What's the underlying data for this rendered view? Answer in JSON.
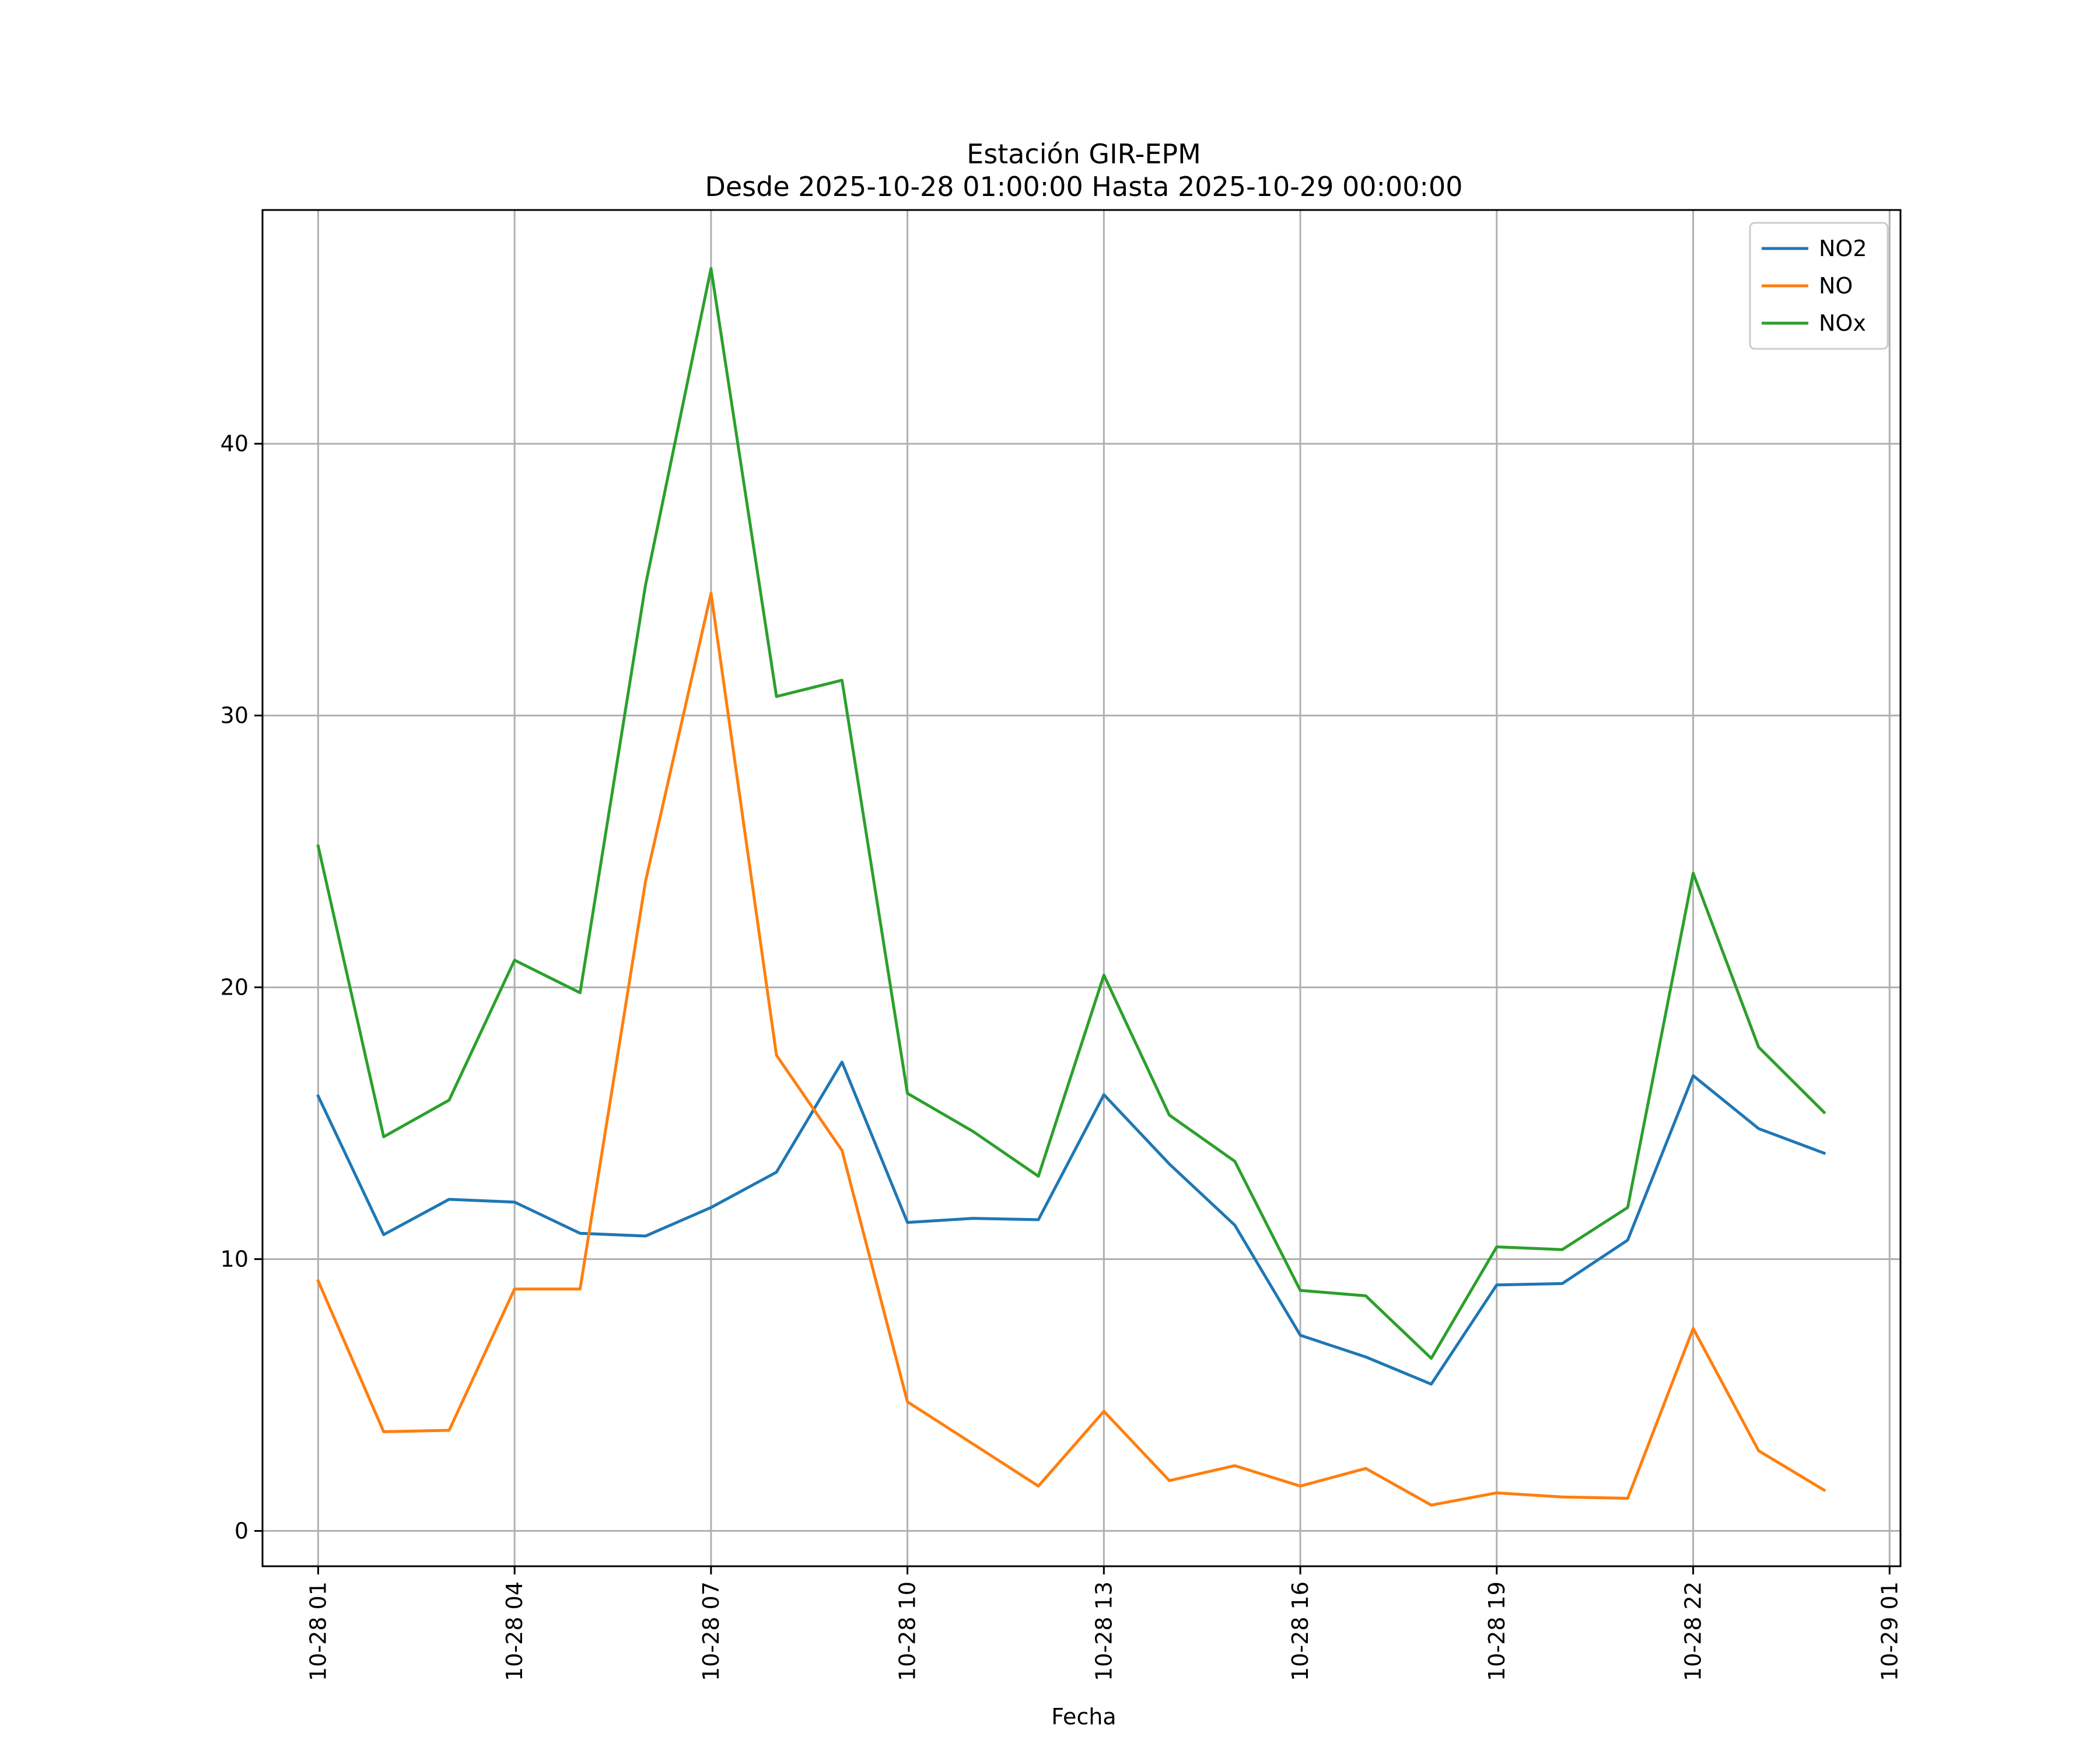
{
  "chart_data": {
    "type": "line",
    "title": "Estación GIR-EPM",
    "subtitle": "Desde 2025-10-28 01:00:00 Hasta 2025-10-29 00:00:00",
    "xlabel": "Fecha",
    "ylabel": "",
    "x": [
      "2025-10-28 01:00",
      "2025-10-28 02:00",
      "2025-10-28 03:00",
      "2025-10-28 04:00",
      "2025-10-28 05:00",
      "2025-10-28 06:00",
      "2025-10-28 07:00",
      "2025-10-28 08:00",
      "2025-10-28 09:00",
      "2025-10-28 10:00",
      "2025-10-28 11:00",
      "2025-10-28 12:00",
      "2025-10-28 13:00",
      "2025-10-28 14:00",
      "2025-10-28 15:00",
      "2025-10-28 16:00",
      "2025-10-28 17:00",
      "2025-10-28 18:00",
      "2025-10-28 19:00",
      "2025-10-28 20:00",
      "2025-10-28 21:00",
      "2025-10-28 22:00",
      "2025-10-28 23:00",
      "2025-10-29 00:00"
    ],
    "x_ticks": [
      "10-28 01",
      "10-28 04",
      "10-28 07",
      "10-28 10",
      "10-28 13",
      "10-28 16",
      "10-28 19",
      "10-28 22",
      "10-29 01"
    ],
    "x_range": [
      "2025-10-28 00:09",
      "2025-10-29 01:10"
    ],
    "y_ticks": [
      0,
      10,
      20,
      30,
      40
    ],
    "ylim": [
      -1.3,
      48.6
    ],
    "grid": true,
    "legend": "top-right",
    "series": [
      {
        "name": "NO2",
        "color": "#1f77b4",
        "values": [
          16.0,
          10.9,
          12.2,
          12.1,
          10.95,
          10.85,
          11.9,
          13.2,
          17.25,
          11.35,
          11.5,
          11.45,
          16.05,
          13.5,
          11.25,
          7.2,
          6.4,
          5.4,
          9.05,
          9.1,
          10.7,
          16.75,
          14.8,
          13.9
        ]
      },
      {
        "name": "NO",
        "color": "#ff7f0e",
        "values": [
          9.2,
          3.65,
          3.7,
          8.9,
          8.9,
          23.9,
          34.5,
          17.5,
          14.0,
          4.75,
          3.2,
          1.65,
          4.4,
          1.85,
          2.4,
          1.65,
          2.3,
          0.95,
          1.4,
          1.25,
          1.2,
          7.45,
          2.95,
          1.5
        ]
      },
      {
        "name": "NOx",
        "color": "#2ca02c",
        "values": [
          25.2,
          14.5,
          15.85,
          21.0,
          19.8,
          34.8,
          46.45,
          30.7,
          31.3,
          16.1,
          14.7,
          13.05,
          20.45,
          15.3,
          13.6,
          8.85,
          8.65,
          6.35,
          10.45,
          10.35,
          11.9,
          24.2,
          17.8,
          15.4
        ]
      }
    ]
  }
}
